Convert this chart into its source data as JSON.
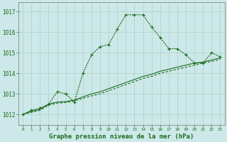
{
  "x": [
    0,
    1,
    2,
    3,
    4,
    5,
    6,
    7,
    8,
    9,
    10,
    11,
    12,
    13,
    14,
    15,
    16,
    17,
    18,
    19,
    20,
    21,
    22,
    23
  ],
  "line_main": [
    1012.0,
    1012.2,
    1012.3,
    1012.5,
    1013.1,
    1013.0,
    1012.6,
    1014.0,
    1014.9,
    1015.3,
    1015.4,
    1016.15,
    1016.85,
    1016.85,
    1016.85,
    1016.25,
    1015.75,
    1015.2,
    1015.2,
    1014.9,
    1014.5,
    1014.5,
    1015.0,
    1014.8
  ],
  "line_upper": [
    1012.0,
    1012.15,
    1012.25,
    1012.5,
    1012.6,
    1012.62,
    1012.7,
    1012.85,
    1013.0,
    1013.1,
    1013.25,
    1013.4,
    1013.55,
    1013.7,
    1013.85,
    1013.95,
    1014.1,
    1014.2,
    1014.3,
    1014.4,
    1014.5,
    1014.55,
    1014.65,
    1014.75
  ],
  "line_lower": [
    1012.0,
    1012.1,
    1012.2,
    1012.45,
    1012.55,
    1012.58,
    1012.65,
    1012.78,
    1012.9,
    1013.0,
    1013.15,
    1013.3,
    1013.45,
    1013.6,
    1013.75,
    1013.85,
    1014.0,
    1014.1,
    1014.2,
    1014.3,
    1014.4,
    1014.5,
    1014.58,
    1014.68
  ],
  "line_color": "#1a6b1a",
  "bg_color": "#cce8e8",
  "grid_color": "#b0d8d0",
  "xlabel": "Graphe pression niveau de la mer (hPa)",
  "ylim_min": 1011.5,
  "ylim_max": 1017.45,
  "xlim_min": -0.5,
  "xlim_max": 23.5,
  "yticks": [
    1012,
    1013,
    1014,
    1015,
    1016,
    1017
  ],
  "xtick_labels": [
    "0",
    "1",
    "2",
    "3",
    "4",
    "5",
    "6",
    "7",
    "8",
    "9",
    "10",
    "11",
    "12",
    "13",
    "14",
    "15",
    "16",
    "17",
    "18",
    "19",
    "20",
    "21",
    "22",
    "23"
  ]
}
